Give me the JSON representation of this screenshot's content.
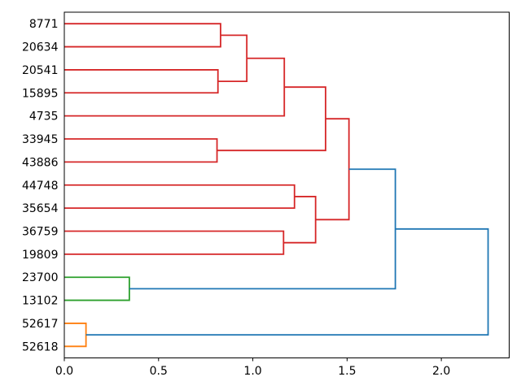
{
  "figure": {
    "kind": "matplotlib-dendrogram-figure",
    "background": "#ffffff"
  },
  "chart_data": {
    "type": "dendrogram",
    "orientation": "leaves-left-root-right",
    "title": "",
    "xlabel": "",
    "ylabel": "",
    "grid": false,
    "legend": null,
    "xlim": [
      0,
      2.36
    ],
    "x_ticks": [
      {
        "value": 0.0,
        "label": "0.0"
      },
      {
        "value": 0.5,
        "label": "0.5"
      },
      {
        "value": 1.0,
        "label": "1.0"
      },
      {
        "value": 1.5,
        "label": "1.5"
      },
      {
        "value": 2.0,
        "label": "2.0"
      }
    ],
    "leaves": [
      "8771",
      "20634",
      "20541",
      "15895",
      "4735",
      "33945",
      "43886",
      "44748",
      "35654",
      "36759",
      "19809",
      "23700",
      "13102",
      "52617",
      "52618"
    ],
    "link_colors": {
      "c_red": "#d62728",
      "c_green": "#2ca02c",
      "c_orange": "#ff7f0e",
      "c_blue": "#1f77b4"
    },
    "spine_color": "#000000",
    "merges": [
      {
        "id": "m1",
        "children": [
          "8771",
          "20634"
        ],
        "distance": 0.829,
        "color": "c_red"
      },
      {
        "id": "m2",
        "children": [
          "20541",
          "15895"
        ],
        "distance": 0.815,
        "color": "c_red"
      },
      {
        "id": "m3",
        "children": [
          "m1",
          "m2"
        ],
        "distance": 0.968,
        "color": "c_red"
      },
      {
        "id": "m4",
        "children": [
          "33945",
          "43886"
        ],
        "distance": 0.81,
        "color": "c_red"
      },
      {
        "id": "m5",
        "children": [
          "m3",
          "4735"
        ],
        "distance": 1.167,
        "color": "c_red"
      },
      {
        "id": "m6",
        "children": [
          "36759",
          "19809"
        ],
        "distance": 1.163,
        "color": "c_red"
      },
      {
        "id": "m7",
        "children": [
          "44748",
          "35654"
        ],
        "distance": 1.221,
        "color": "c_red"
      },
      {
        "id": "m8",
        "children": [
          "m7",
          "m6"
        ],
        "distance": 1.333,
        "color": "c_red"
      },
      {
        "id": "m9",
        "children": [
          "m5",
          "m4"
        ],
        "distance": 1.386,
        "color": "c_red"
      },
      {
        "id": "m10",
        "children": [
          "m9",
          "m8"
        ],
        "distance": 1.51,
        "color": "c_red"
      },
      {
        "id": "m11",
        "children": [
          "23700",
          "13102"
        ],
        "distance": 0.345,
        "color": "c_green"
      },
      {
        "id": "m12",
        "children": [
          "52617",
          "52618"
        ],
        "distance": 0.115,
        "color": "c_orange"
      },
      {
        "id": "m13",
        "children": [
          "m10",
          "m11"
        ],
        "distance": 1.756,
        "color": "c_blue"
      },
      {
        "id": "m14",
        "children": [
          "m13",
          "m12"
        ],
        "distance": 2.248,
        "color": "c_blue"
      }
    ]
  }
}
